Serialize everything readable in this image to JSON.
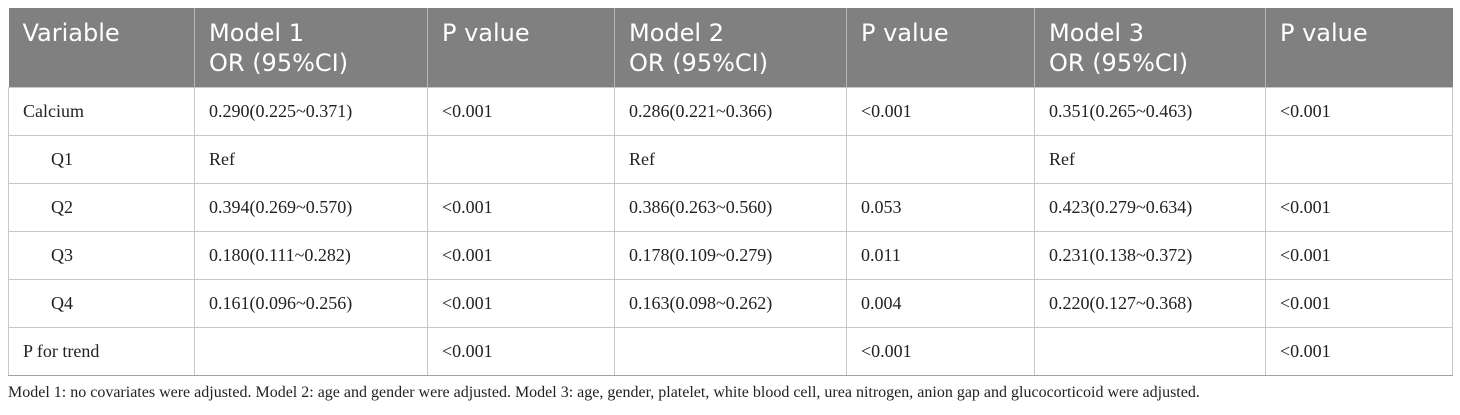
{
  "headers": [
    {
      "line1": "Variable",
      "line2": ""
    },
    {
      "line1": "Model 1",
      "line2": "OR (95%CI)"
    },
    {
      "line1": "P value",
      "line2": ""
    },
    {
      "line1": "Model 2",
      "line2": "OR (95%CI)"
    },
    {
      "line1": "P value",
      "line2": ""
    },
    {
      "line1": "Model 3",
      "line2": "OR (95%CI)"
    },
    {
      "line1": "P value",
      "line2": ""
    }
  ],
  "rows": [
    {
      "variable": "Calcium",
      "indent": false,
      "cells": [
        "0.290(0.225~0.371)",
        "<0.001",
        "0.286(0.221~0.366)",
        "<0.001",
        "0.351(0.265~0.463)",
        "<0.001"
      ]
    },
    {
      "variable": "Q1",
      "indent": true,
      "cells": [
        "Ref",
        "",
        "Ref",
        "",
        "Ref",
        ""
      ]
    },
    {
      "variable": "Q2",
      "indent": true,
      "cells": [
        "0.394(0.269~0.570)",
        "<0.001",
        "0.386(0.263~0.560)",
        "0.053",
        "0.423(0.279~0.634)",
        "<0.001"
      ]
    },
    {
      "variable": "Q3",
      "indent": true,
      "cells": [
        "0.180(0.111~0.282)",
        "<0.001",
        "0.178(0.109~0.279)",
        "0.011",
        "0.231(0.138~0.372)",
        "<0.001"
      ]
    },
    {
      "variable": "Q4",
      "indent": true,
      "cells": [
        "0.161(0.096~0.256)",
        "<0.001",
        "0.163(0.098~0.262)",
        "0.004",
        "0.220(0.127~0.368)",
        "<0.001"
      ]
    },
    {
      "variable": "P for trend",
      "indent": false,
      "cells": [
        "",
        "<0.001",
        "",
        "<0.001",
        "",
        "<0.001"
      ]
    }
  ],
  "footnote": "Model 1: no covariates were adjusted. Model 2: age and gender were adjusted. Model 3: age, gender, platelet, white blood cell, urea nitrogen, anion gap and glucocorticoid were adjusted.",
  "colors": {
    "header_bg": "#808080",
    "header_text": "#ffffff",
    "grid": "#c8c8c8"
  }
}
